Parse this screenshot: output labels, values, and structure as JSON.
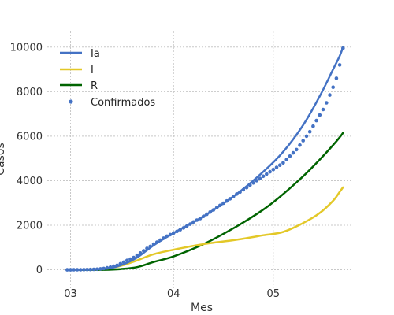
{
  "chart_data": {
    "type": "line",
    "xlabel": "Mes",
    "ylabel": "Casos",
    "x_ticks": [
      {
        "label": "03",
        "day": 0
      },
      {
        "label": "04",
        "day": 31
      },
      {
        "label": "05",
        "day": 61
      }
    ],
    "xlim": [
      -7,
      85
    ],
    "ylim": [
      -900,
      10700
    ],
    "y_ticks": [
      0,
      2000,
      4000,
      6000,
      8000,
      10000
    ],
    "grid": true,
    "legend_position": "top-left",
    "series": [
      {
        "name": "Ia",
        "color": "#4472c4",
        "style": "line",
        "x": [
          -1,
          10,
          15,
          20,
          25,
          31,
          40,
          50,
          58,
          64,
          70,
          75,
          79,
          81,
          82
        ],
        "y": [
          0,
          40,
          200,
          550,
          1100,
          1650,
          2400,
          3400,
          4400,
          5300,
          6500,
          7800,
          9000,
          9600,
          10000
        ]
      },
      {
        "name": "I",
        "color": "#e3c828",
        "style": "line",
        "x": [
          -1,
          10,
          15,
          20,
          25,
          31,
          40,
          50,
          58,
          64,
          70,
          75,
          79,
          81,
          82
        ],
        "y": [
          0,
          40,
          170,
          420,
          700,
          900,
          1150,
          1350,
          1550,
          1700,
          2100,
          2550,
          3100,
          3500,
          3700
        ]
      },
      {
        "name": "R",
        "color": "#006400",
        "style": "line",
        "x": [
          -1,
          10,
          15,
          20,
          25,
          31,
          40,
          50,
          58,
          64,
          70,
          75,
          79,
          81,
          82
        ],
        "y": [
          0,
          0,
          30,
          120,
          350,
          600,
          1150,
          1950,
          2700,
          3400,
          4200,
          4950,
          5600,
          5950,
          6150
        ]
      },
      {
        "name": "Confirmados",
        "color": "#4472c4",
        "style": "points",
        "x": [
          -1,
          0,
          1,
          2,
          3,
          4,
          5,
          6,
          7,
          8,
          9,
          10,
          11,
          12,
          13,
          14,
          15,
          16,
          17,
          18,
          19,
          20,
          21,
          22,
          23,
          24,
          25,
          26,
          27,
          28,
          29,
          30,
          31,
          32,
          33,
          34,
          35,
          36,
          37,
          38,
          39,
          40,
          41,
          42,
          43,
          44,
          45,
          46,
          47,
          48,
          49,
          50,
          51,
          52,
          53,
          54,
          55,
          56,
          57,
          58,
          59,
          60,
          61,
          62,
          63,
          64,
          65,
          66,
          67,
          68,
          69,
          70,
          71,
          72,
          73,
          74,
          75,
          76,
          77,
          78,
          79,
          80,
          81,
          82
        ],
        "y": [
          0,
          0,
          1,
          2,
          3,
          5,
          8,
          12,
          18,
          28,
          40,
          60,
          85,
          120,
          160,
          200,
          270,
          340,
          420,
          480,
          550,
          650,
          750,
          850,
          960,
          1050,
          1150,
          1240,
          1330,
          1420,
          1510,
          1580,
          1650,
          1720,
          1800,
          1880,
          1960,
          2050,
          2150,
          2230,
          2300,
          2400,
          2490,
          2590,
          2690,
          2790,
          2890,
          2990,
          3090,
          3190,
          3290,
          3400,
          3490,
          3590,
          3690,
          3800,
          3900,
          4000,
          4100,
          4200,
          4300,
          4400,
          4500,
          4600,
          4700,
          4800,
          4950,
          5100,
          5250,
          5400,
          5600,
          5800,
          6000,
          6200,
          6450,
          6700,
          6950,
          7200,
          7500,
          7850,
          8200,
          8600,
          9200,
          9950
        ]
      }
    ]
  }
}
